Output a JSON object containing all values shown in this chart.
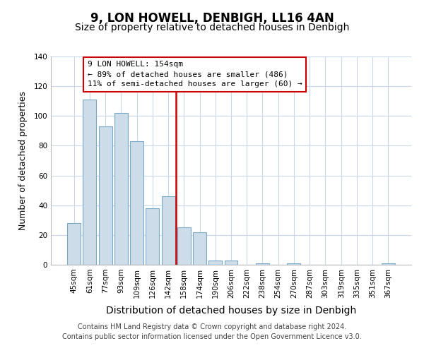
{
  "title": "9, LON HOWELL, DENBIGH, LL16 4AN",
  "subtitle": "Size of property relative to detached houses in Denbigh",
  "xlabel": "Distribution of detached houses by size in Denbigh",
  "ylabel": "Number of detached properties",
  "bar_labels": [
    "45sqm",
    "61sqm",
    "77sqm",
    "93sqm",
    "109sqm",
    "126sqm",
    "142sqm",
    "158sqm",
    "174sqm",
    "190sqm",
    "206sqm",
    "222sqm",
    "238sqm",
    "254sqm",
    "270sqm",
    "287sqm",
    "303sqm",
    "319sqm",
    "335sqm",
    "351sqm",
    "367sqm"
  ],
  "bar_values": [
    28,
    111,
    93,
    102,
    83,
    38,
    46,
    25,
    22,
    3,
    3,
    0,
    1,
    0,
    1,
    0,
    0,
    0,
    0,
    0,
    1
  ],
  "bar_color": "#ccdce8",
  "bar_edge_color": "#7aaac8",
  "vline_index": 7,
  "vline_color": "#cc0000",
  "ylim": [
    0,
    140
  ],
  "yticks": [
    0,
    20,
    40,
    60,
    80,
    100,
    120,
    140
  ],
  "annotation_title": "9 LON HOWELL: 154sqm",
  "annotation_line1": "← 89% of detached houses are smaller (486)",
  "annotation_line2": "11% of semi-detached houses are larger (60) →",
  "annotation_box_color": "#ffffff",
  "annotation_border_color": "#cc0000",
  "footer_line1": "Contains HM Land Registry data © Crown copyright and database right 2024.",
  "footer_line2": "Contains public sector information licensed under the Open Government Licence v3.0.",
  "background_color": "#ffffff",
  "grid_color": "#c8d8e8",
  "title_fontsize": 12,
  "subtitle_fontsize": 10,
  "xlabel_fontsize": 10,
  "ylabel_fontsize": 9,
  "tick_fontsize": 7.5,
  "footer_fontsize": 7,
  "ann_fontsize": 8
}
